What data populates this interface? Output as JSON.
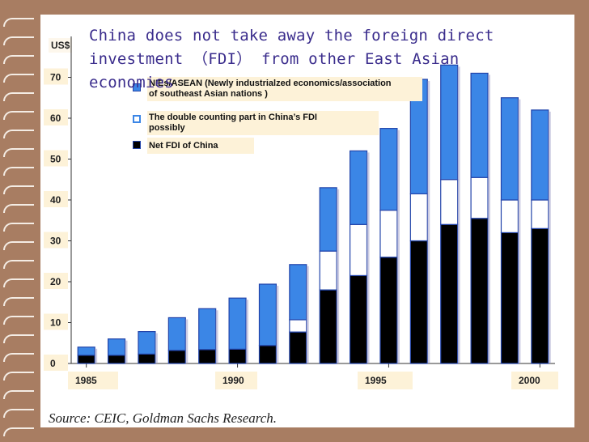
{
  "title": "China does not take away the foreign direct investment （FDI）  from other East Asian economies",
  "source": "Source: CEIC, Goldman Sachs Research.",
  "colors": {
    "nies_asean": "#3b86e6",
    "double_counting": "#ffffff",
    "net_fdi_china": "#000000",
    "bar_border": "#2244aa"
  },
  "chart_data": {
    "type": "bar",
    "stacked": true,
    "title": "",
    "xlabel": "",
    "ylabel": "US$",
    "ylim": [
      0,
      80
    ],
    "yticks": [
      0,
      10,
      20,
      30,
      40,
      50,
      60,
      70
    ],
    "x": [
      1985,
      1986,
      1987,
      1988,
      1989,
      1990,
      1991,
      1992,
      1993,
      1994,
      1995,
      1996,
      1997,
      1998,
      1999,
      2000
    ],
    "x_tick_labels": [
      "1985",
      "1990",
      "1995",
      "2000"
    ],
    "series": [
      {
        "name": "Net FDI of China",
        "values": [
          2,
          2,
          2.3,
          3.2,
          3.4,
          3.5,
          4.4,
          7.7,
          18,
          21.5,
          26,
          30,
          34,
          35.5,
          32,
          33
        ]
      },
      {
        "name": "The double counting part in China’s FDI possibly",
        "values": [
          0,
          0,
          0,
          0,
          0,
          0,
          0,
          3,
          9.5,
          12.5,
          11.5,
          11.5,
          11,
          10,
          8,
          7
        ]
      },
      {
        "name": "NIEs/ASEAN (Newly industrialzed economics/association of southeast Asian nations )",
        "values": [
          2,
          4,
          5.5,
          8,
          10,
          12.5,
          15,
          13.5,
          15.5,
          18,
          20,
          28,
          28,
          25.5,
          25,
          22
        ]
      }
    ]
  }
}
